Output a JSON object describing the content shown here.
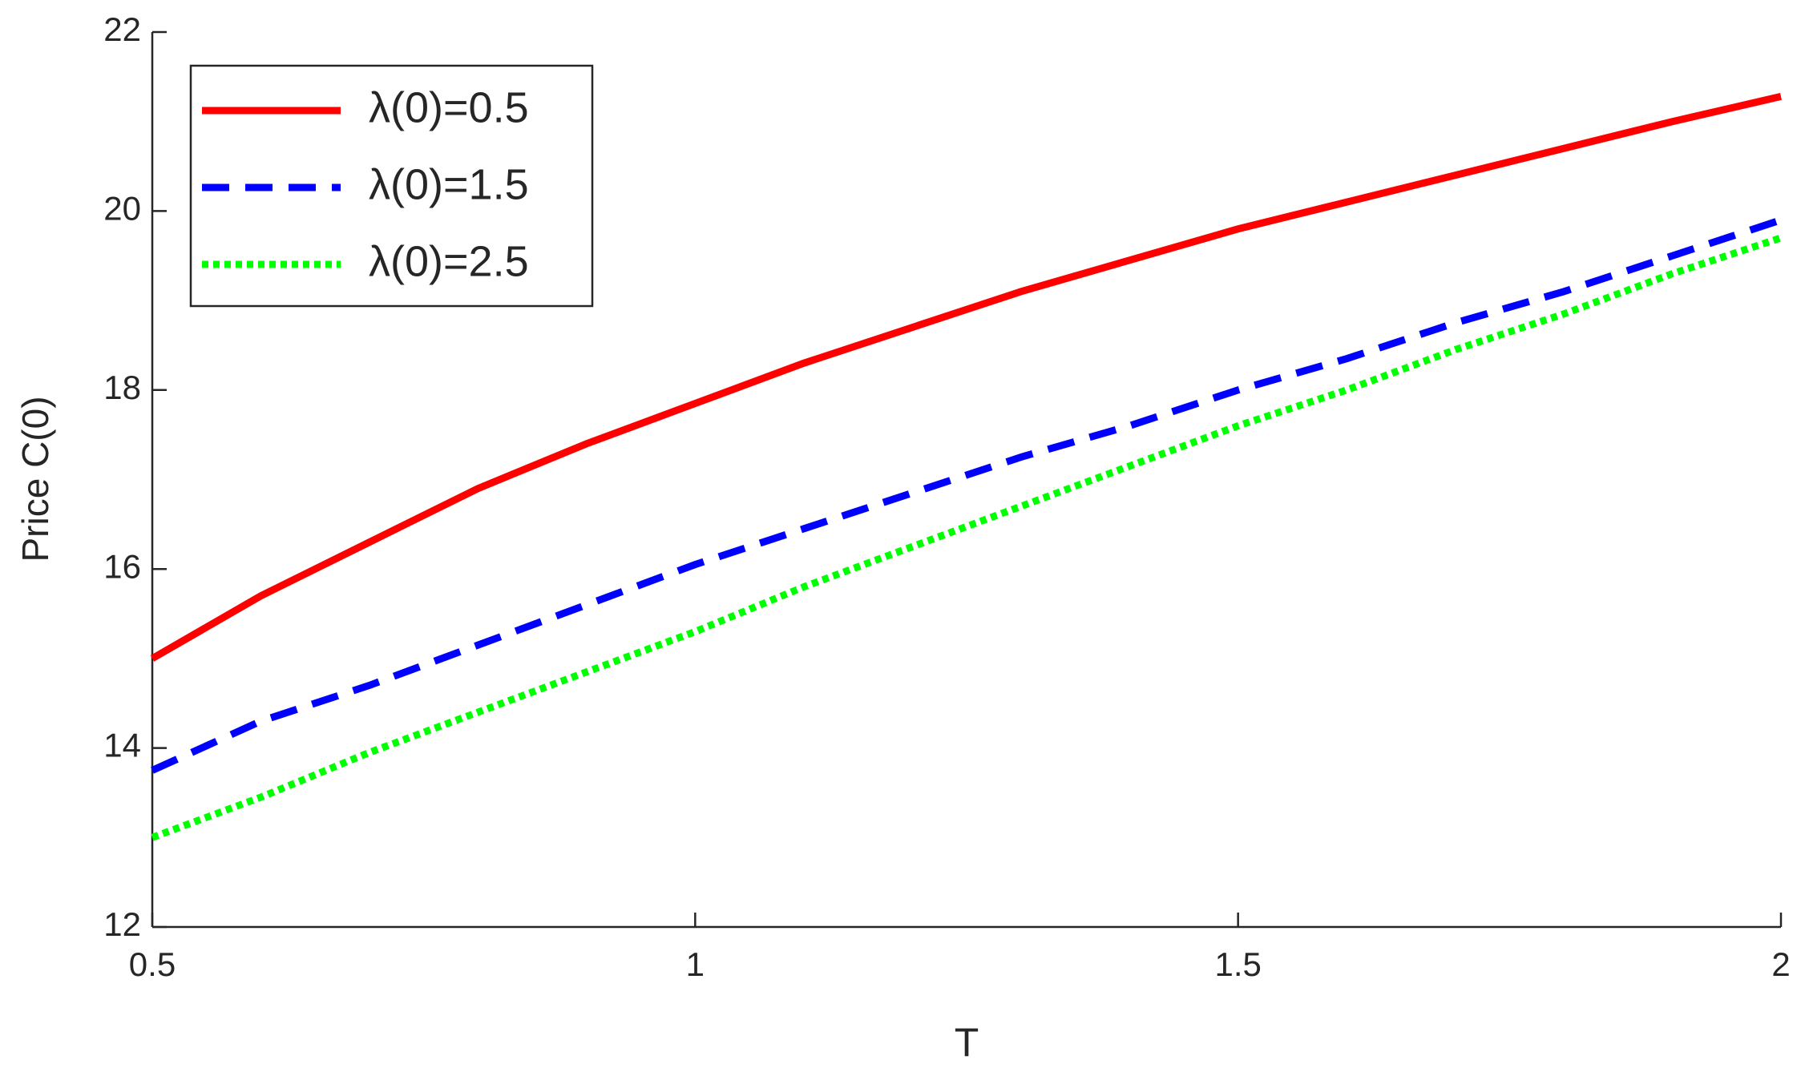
{
  "chart_data": {
    "type": "line",
    "x_label": "T",
    "y_label": "Price C(0)",
    "x": [
      0.5,
      0.6,
      0.7,
      0.8,
      0.9,
      1.0,
      1.1,
      1.2,
      1.3,
      1.4,
      1.5,
      1.6,
      1.7,
      1.8,
      1.9,
      2.0
    ],
    "series": [
      {
        "name": "λ(0)=0.5",
        "color": "#ff0000",
        "dash": "solid",
        "values": [
          15.0,
          15.7,
          16.3,
          16.9,
          17.4,
          17.85,
          18.3,
          18.7,
          19.1,
          19.45,
          19.8,
          20.1,
          20.4,
          20.7,
          21.0,
          21.28
        ]
      },
      {
        "name": "λ(0)=1.5",
        "color": "#0000ff",
        "dash": "dashed",
        "values": [
          13.75,
          14.3,
          14.7,
          15.15,
          15.6,
          16.05,
          16.45,
          16.85,
          17.25,
          17.6,
          18.0,
          18.35,
          18.75,
          19.1,
          19.5,
          19.9
        ]
      },
      {
        "name": "λ(0)=2.5",
        "color": "#00ff00",
        "dash": "dotted",
        "values": [
          13.0,
          13.45,
          13.95,
          14.4,
          14.85,
          15.3,
          15.8,
          16.25,
          16.7,
          17.15,
          17.6,
          18.0,
          18.45,
          18.85,
          19.3,
          19.7
        ]
      }
    ],
    "xlim": [
      0.5,
      2
    ],
    "xticks": [
      0.5,
      1,
      1.5,
      2
    ],
    "ylim": [
      12,
      22
    ],
    "yticks": [
      12,
      14,
      16,
      18,
      20,
      22
    ],
    "legend": "upper left",
    "grid": false
  }
}
